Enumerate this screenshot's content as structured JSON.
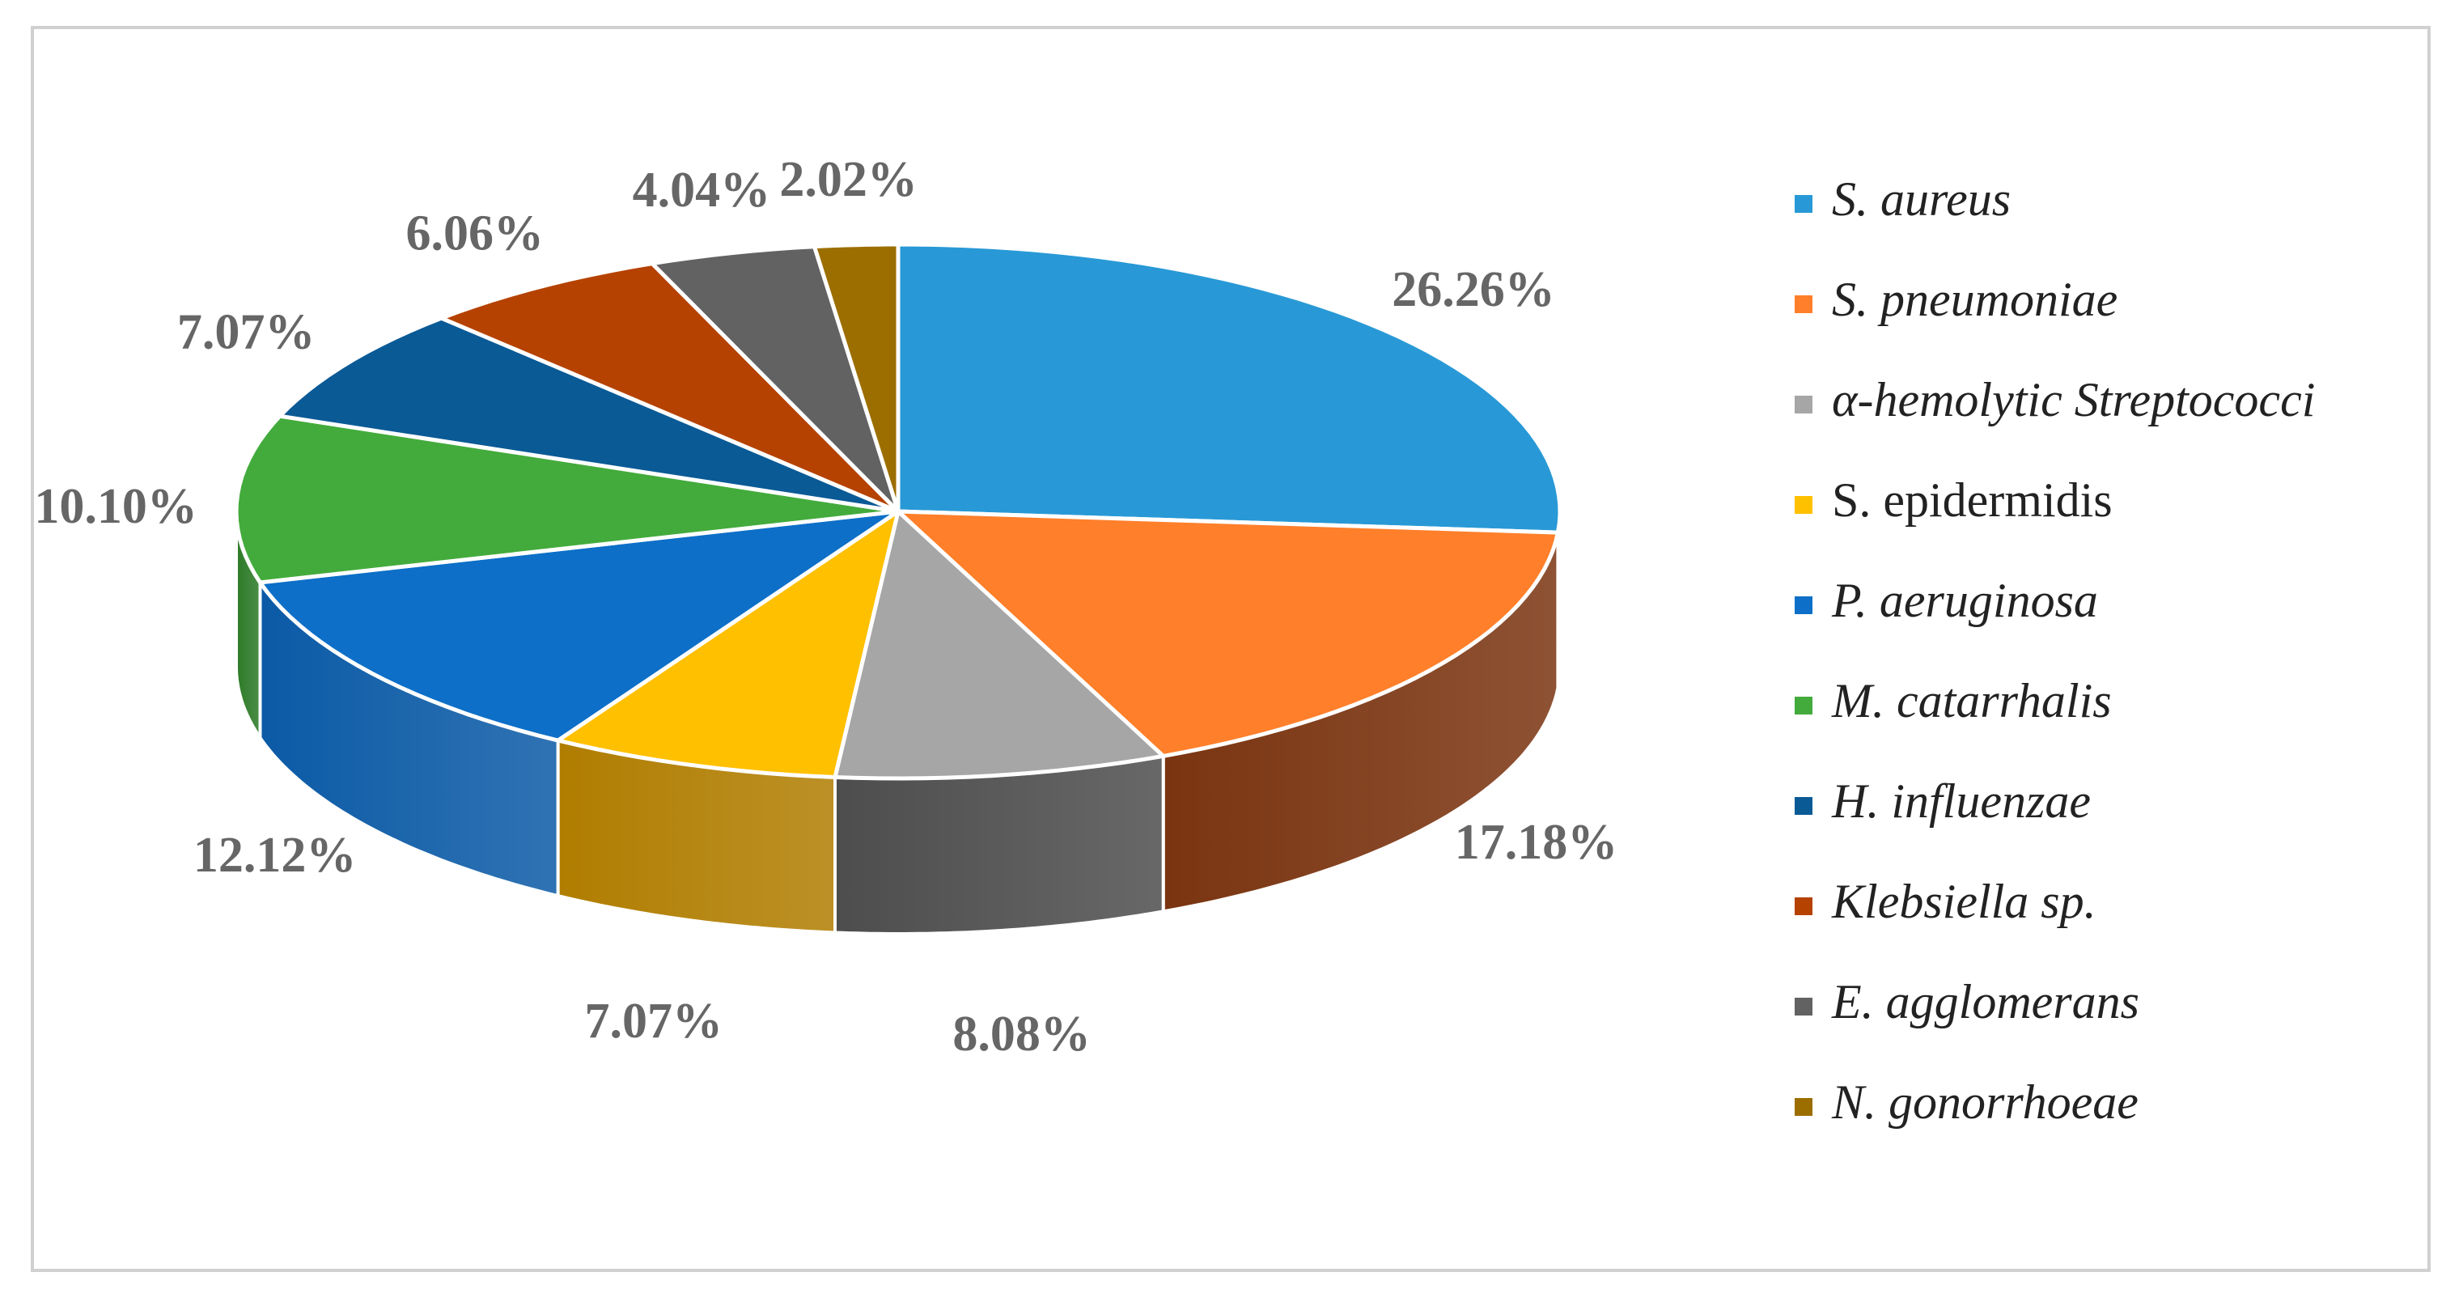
{
  "chart_data": {
    "type": "pie",
    "style": "3d",
    "title": "",
    "unit": "%",
    "legend_position": "right",
    "slices": [
      {
        "name": "S. aureus",
        "value": 26.26,
        "label": "26.26%",
        "color": "#2899d6",
        "side_color": "#1a6fa0",
        "italic": true
      },
      {
        "name": "S. pneumoniae",
        "value": 17.18,
        "label": "17.18%",
        "color": "#ff7f2a",
        "side_color": "#7a3410",
        "italic": true
      },
      {
        "name": "α-hemolytic Streptococci",
        "value": 8.08,
        "label": "8.08%",
        "color": "#a6a6a6",
        "side_color": "#4d4d4d",
        "italic": true
      },
      {
        "name": "S. epidermidis",
        "value": 7.07,
        "label": "7.07%",
        "color": "#ffc000",
        "side_color": "#b07d00",
        "italic": false
      },
      {
        "name": "P. aeruginosa",
        "value": 12.12,
        "label": "12.12%",
        "color": "#0d6fc7",
        "side_color": "#0b5aa6",
        "italic": true
      },
      {
        "name": "M. catarrhalis",
        "value": 10.1,
        "label": "10.10%",
        "color": "#43ab3c",
        "side_color": "#2c7a27",
        "italic": true
      },
      {
        "name": "H. influenzae",
        "value": 7.07,
        "label": "7.07%",
        "color": "#0a5a96",
        "side_color": "#063c66",
        "italic": true
      },
      {
        "name": "Klebsiella sp.",
        "value": 6.06,
        "label": "6.06%",
        "color": "#b54200",
        "side_color": "#7a2d00",
        "italic": true
      },
      {
        "name": "E. agglomerans",
        "value": 4.04,
        "label": "4.04%",
        "color": "#626262",
        "side_color": "#3d3d3d",
        "italic": true
      },
      {
        "name": "N. gonorrhoeae",
        "value": 2.02,
        "label": "2.02%",
        "color": "#9c6e00",
        "side_color": "#6b4b00",
        "italic": true
      }
    ]
  }
}
